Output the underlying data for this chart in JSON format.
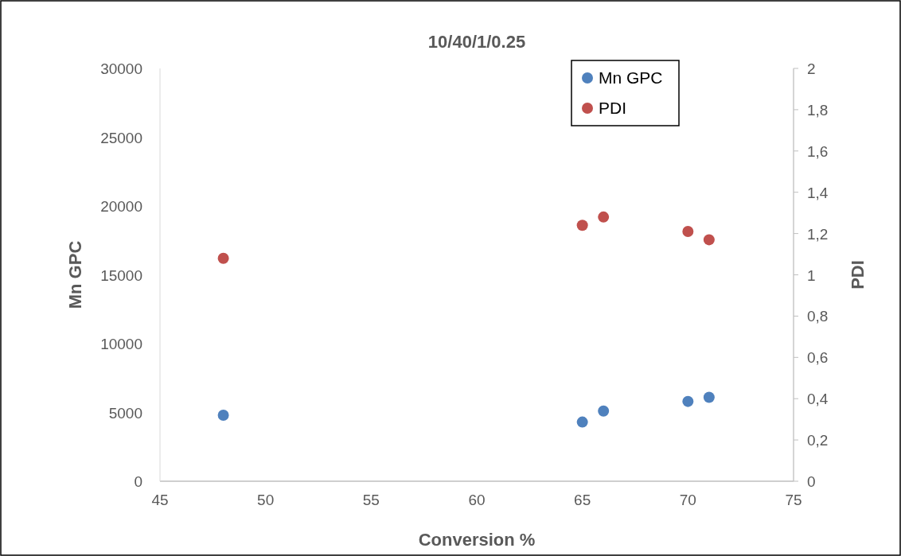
{
  "chart_data": {
    "type": "scatter",
    "title": "10/40/1/0.25",
    "xlabel": "Conversion %",
    "ylabel": "Mn GPC",
    "y2label": "PDI",
    "xlim": [
      45,
      75
    ],
    "xticks": [
      45,
      50,
      55,
      60,
      65,
      70,
      75
    ],
    "ylim": [
      0,
      30000
    ],
    "yticks": [
      0,
      5000,
      10000,
      15000,
      20000,
      25000,
      30000
    ],
    "y2lim": [
      0,
      2
    ],
    "y2ticks": [
      0,
      {
        "value": 0.2,
        "label": "0,2"
      },
      {
        "value": 0.4,
        "label": "0,4"
      },
      {
        "value": 0.6,
        "label": "0,6"
      },
      {
        "value": 0.8,
        "label": "0,8"
      },
      1,
      {
        "value": 1.2,
        "label": "1,2"
      },
      {
        "value": 1.4,
        "label": "1,4"
      },
      {
        "value": 1.6,
        "label": "1,6"
      },
      {
        "value": 1.8,
        "label": "1,8"
      },
      2
    ],
    "x": [
      48,
      65,
      66,
      70,
      71
    ],
    "series": [
      {
        "name": "Mn GPC",
        "color": "#4f81bd",
        "values": [
          4800,
          4300,
          5100,
          5800,
          6100
        ]
      },
      {
        "name": "PDI",
        "color": "#c0504d",
        "axis": "y2",
        "values": [
          1.08,
          1.24,
          1.28,
          1.21,
          1.17
        ]
      }
    ],
    "marker": "circle",
    "legend": "top right"
  }
}
